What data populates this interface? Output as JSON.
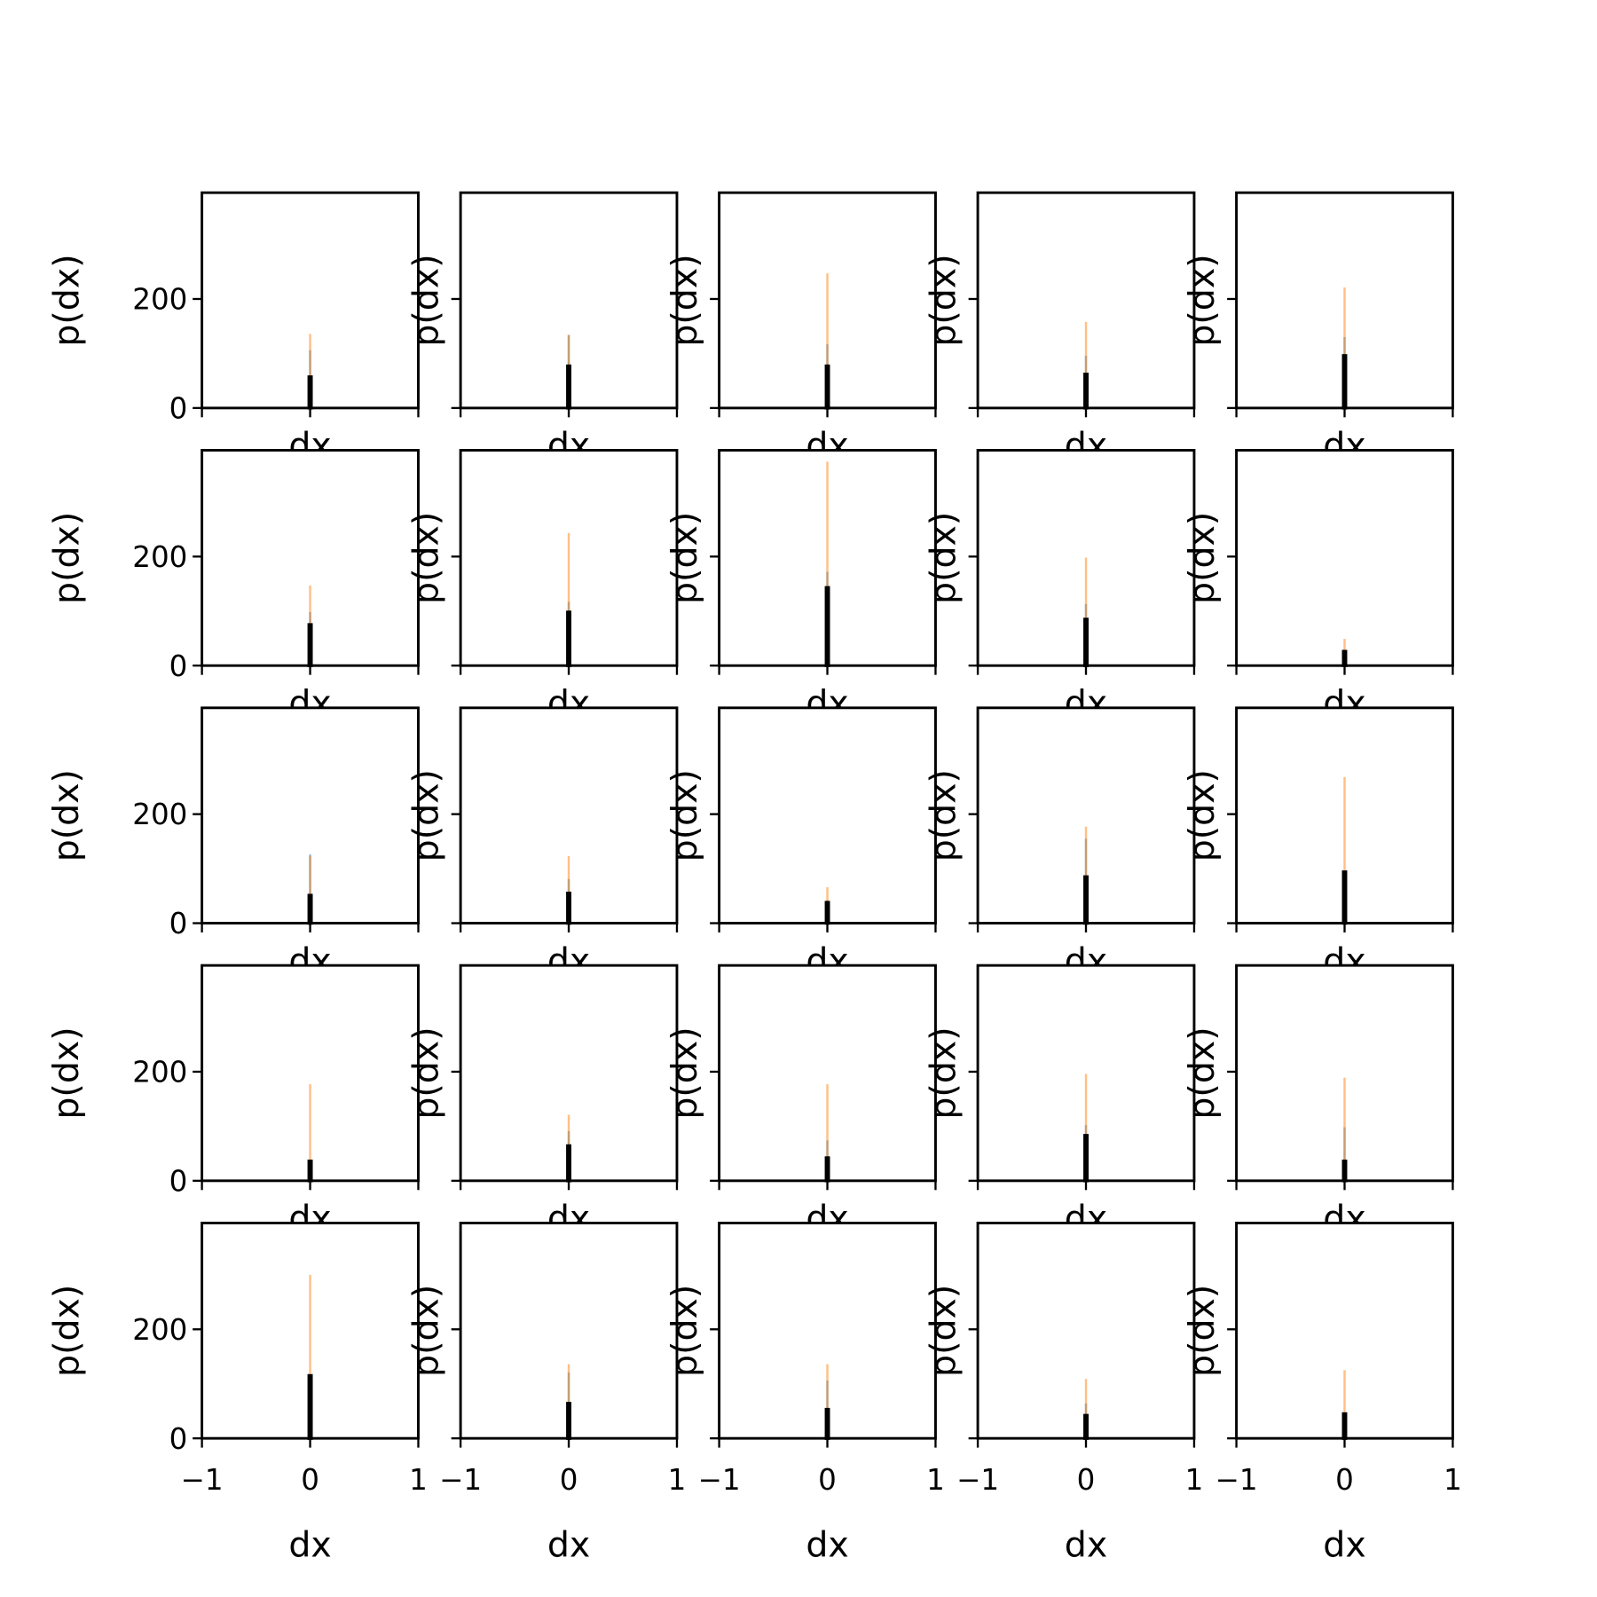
{
  "chart_data": [
    {
      "type": "histogram",
      "xlabel": "dx",
      "ylabel": "p(dx)",
      "bins": [
        -0.01,
        0.01
      ],
      "xlim": [
        -1,
        1
      ],
      "xticks": [
        {
          "value": -1,
          "label": "−1"
        },
        0,
        1
      ],
      "ylim": [
        0,
        395
      ],
      "yticks": [
        0,
        200
      ],
      "series": [
        {
          "color": "#1f77b4",
          "values": [
            106
          ]
        },
        {
          "color": "#ff7f0e",
          "values": [
            136
          ]
        },
        {
          "color": "#000000",
          "values": [
            57
          ]
        }
      ]
    },
    {
      "type": "histogram",
      "xlabel": "dx",
      "ylabel": "p(dx)",
      "bins": [
        -0.01,
        0.01
      ],
      "xlim": [
        -1,
        1
      ],
      "xticks": [
        {
          "value": -1,
          "label": "−1"
        },
        0,
        1
      ],
      "ylim": [
        0,
        395
      ],
      "yticks": [
        0,
        200
      ],
      "series": [
        {
          "color": "#1f77b4",
          "values": [
            134
          ]
        },
        {
          "color": "#ff7f0e",
          "values": [
            134
          ]
        },
        {
          "color": "#000000",
          "values": [
            77
          ]
        }
      ]
    },
    {
      "type": "histogram",
      "xlabel": "dx",
      "ylabel": "p(dx)",
      "bins": [
        -0.01,
        0.01
      ],
      "xlim": [
        -1,
        1
      ],
      "xticks": [
        {
          "value": -1,
          "label": "−1"
        },
        0,
        1
      ],
      "ylim": [
        0,
        395
      ],
      "yticks": [
        0,
        200
      ],
      "series": [
        {
          "color": "#1f77b4",
          "values": [
            117
          ]
        },
        {
          "color": "#ff7f0e",
          "values": [
            247
          ]
        },
        {
          "color": "#000000",
          "values": [
            77
          ]
        }
      ]
    },
    {
      "type": "histogram",
      "xlabel": "dx",
      "ylabel": "p(dx)",
      "bins": [
        -0.01,
        0.01
      ],
      "xlim": [
        -1,
        1
      ],
      "xticks": [
        {
          "value": -1,
          "label": "−1"
        },
        0,
        1
      ],
      "ylim": [
        0,
        395
      ],
      "yticks": [
        0,
        200
      ],
      "series": [
        {
          "color": "#1f77b4",
          "values": [
            96
          ]
        },
        {
          "color": "#ff7f0e",
          "values": [
            158
          ]
        },
        {
          "color": "#000000",
          "values": [
            62
          ]
        }
      ]
    },
    {
      "type": "histogram",
      "xlabel": "dx",
      "ylabel": "p(dx)",
      "bins": [
        -0.01,
        0.01
      ],
      "xlim": [
        -1,
        1
      ],
      "xticks": [
        {
          "value": -1,
          "label": "−1"
        },
        0,
        1
      ],
      "ylim": [
        0,
        395
      ],
      "yticks": [
        0,
        200
      ],
      "series": [
        {
          "color": "#1f77b4",
          "values": [
            130
          ]
        },
        {
          "color": "#ff7f0e",
          "values": [
            221
          ]
        },
        {
          "color": "#000000",
          "values": [
            96
          ]
        }
      ]
    },
    {
      "type": "histogram",
      "xlabel": "dx",
      "ylabel": "p(dx)",
      "bins": [
        -0.01,
        0.01
      ],
      "xlim": [
        -1,
        1
      ],
      "xticks": [
        {
          "value": -1,
          "label": "−1"
        },
        0,
        1
      ],
      "ylim": [
        0,
        395
      ],
      "yticks": [
        0,
        200
      ],
      "series": [
        {
          "color": "#1f77b4",
          "values": [
            98
          ]
        },
        {
          "color": "#ff7f0e",
          "values": [
            147
          ]
        },
        {
          "color": "#000000",
          "values": [
            75
          ]
        }
      ]
    },
    {
      "type": "histogram",
      "xlabel": "dx",
      "ylabel": "p(dx)",
      "bins": [
        -0.01,
        0.01
      ],
      "xlim": [
        -1,
        1
      ],
      "xticks": [
        {
          "value": -1,
          "label": "−1"
        },
        0,
        1
      ],
      "ylim": [
        0,
        395
      ],
      "yticks": [
        0,
        200
      ],
      "series": [
        {
          "color": "#1f77b4",
          "values": [
            117
          ]
        },
        {
          "color": "#ff7f0e",
          "values": [
            243
          ]
        },
        {
          "color": "#000000",
          "values": [
            98
          ]
        }
      ]
    },
    {
      "type": "histogram",
      "xlabel": "dx",
      "ylabel": "p(dx)",
      "bins": [
        -0.01,
        0.01
      ],
      "xlim": [
        -1,
        1
      ],
      "xticks": [
        {
          "value": -1,
          "label": "−1"
        },
        0,
        1
      ],
      "ylim": [
        0,
        395
      ],
      "yticks": [
        0,
        200
      ],
      "series": [
        {
          "color": "#1f77b4",
          "values": [
            172
          ]
        },
        {
          "color": "#ff7f0e",
          "values": [
            374
          ]
        },
        {
          "color": "#000000",
          "values": [
            143
          ]
        }
      ]
    },
    {
      "type": "histogram",
      "xlabel": "dx",
      "ylabel": "p(dx)",
      "bins": [
        -0.01,
        0.01
      ],
      "xlim": [
        -1,
        1
      ],
      "xticks": [
        {
          "value": -1,
          "label": "−1"
        },
        0,
        1
      ],
      "ylim": [
        0,
        395
      ],
      "yticks": [
        0,
        200
      ],
      "series": [
        {
          "color": "#1f77b4",
          "values": [
            113
          ]
        },
        {
          "color": "#ff7f0e",
          "values": [
            198
          ]
        },
        {
          "color": "#000000",
          "values": [
            85
          ]
        }
      ]
    },
    {
      "type": "histogram",
      "xlabel": "dx",
      "ylabel": "p(dx)",
      "bins": [
        -0.01,
        0.01
      ],
      "xlim": [
        -1,
        1
      ],
      "xticks": [
        {
          "value": -1,
          "label": "−1"
        },
        0,
        1
      ],
      "ylim": [
        0,
        395
      ],
      "yticks": [
        0,
        200
      ],
      "series": [
        {
          "color": "#1f77b4",
          "values": [
            26
          ]
        },
        {
          "color": "#ff7f0e",
          "values": [
            49
          ]
        },
        {
          "color": "#000000",
          "values": [
            26
          ]
        }
      ]
    },
    {
      "type": "histogram",
      "xlabel": "dx",
      "ylabel": "p(dx)",
      "bins": [
        -0.01,
        0.01
      ],
      "xlim": [
        -1,
        1
      ],
      "xticks": [
        {
          "value": -1,
          "label": "−1"
        },
        0,
        1
      ],
      "ylim": [
        0,
        395
      ],
      "yticks": [
        0,
        200
      ],
      "series": [
        {
          "color": "#1f77b4",
          "values": [
            126
          ]
        },
        {
          "color": "#ff7f0e",
          "values": [
            123
          ]
        },
        {
          "color": "#000000",
          "values": [
            51
          ]
        }
      ]
    },
    {
      "type": "histogram",
      "xlabel": "dx",
      "ylabel": "p(dx)",
      "bins": [
        -0.01,
        0.01
      ],
      "xlim": [
        -1,
        1
      ],
      "xticks": [
        {
          "value": -1,
          "label": "−1"
        },
        0,
        1
      ],
      "ylim": [
        0,
        395
      ],
      "yticks": [
        0,
        200
      ],
      "series": [
        {
          "color": "#1f77b4",
          "values": [
            81
          ]
        },
        {
          "color": "#ff7f0e",
          "values": [
            123
          ]
        },
        {
          "color": "#000000",
          "values": [
            55
          ]
        }
      ]
    },
    {
      "type": "histogram",
      "xlabel": "dx",
      "ylabel": "p(dx)",
      "bins": [
        -0.01,
        0.01
      ],
      "xlim": [
        -1,
        1
      ],
      "xticks": [
        {
          "value": -1,
          "label": "−1"
        },
        0,
        1
      ],
      "ylim": [
        0,
        395
      ],
      "yticks": [
        0,
        200
      ],
      "series": [
        {
          "color": "#1f77b4",
          "values": [
            42
          ]
        },
        {
          "color": "#ff7f0e",
          "values": [
            66
          ]
        },
        {
          "color": "#000000",
          "values": [
            38
          ]
        }
      ]
    },
    {
      "type": "histogram",
      "xlabel": "dx",
      "ylabel": "p(dx)",
      "bins": [
        -0.01,
        0.01
      ],
      "xlim": [
        -1,
        1
      ],
      "xticks": [
        {
          "value": -1,
          "label": "−1"
        },
        0,
        1
      ],
      "ylim": [
        0,
        395
      ],
      "yticks": [
        0,
        200
      ],
      "series": [
        {
          "color": "#1f77b4",
          "values": [
            155
          ]
        },
        {
          "color": "#ff7f0e",
          "values": [
            177
          ]
        },
        {
          "color": "#000000",
          "values": [
            85
          ]
        }
      ]
    },
    {
      "type": "histogram",
      "xlabel": "dx",
      "ylabel": "p(dx)",
      "bins": [
        -0.01,
        0.01
      ],
      "xlim": [
        -1,
        1
      ],
      "xticks": [
        {
          "value": -1,
          "label": "−1"
        },
        0,
        1
      ],
      "ylim": [
        0,
        395
      ],
      "yticks": [
        0,
        200
      ],
      "series": [
        {
          "color": "#1f77b4",
          "values": [
            66
          ]
        },
        {
          "color": "#ff7f0e",
          "values": [
            268
          ]
        },
        {
          "color": "#000000",
          "values": [
            94
          ]
        }
      ]
    },
    {
      "type": "histogram",
      "xlabel": "dx",
      "ylabel": "p(dx)",
      "bins": [
        -0.01,
        0.01
      ],
      "xlim": [
        -1,
        1
      ],
      "xticks": [
        {
          "value": -1,
          "label": "−1"
        },
        0,
        1
      ],
      "ylim": [
        0,
        395
      ],
      "yticks": [
        0,
        200
      ],
      "series": [
        {
          "color": "#1f77b4",
          "values": [
            15
          ]
        },
        {
          "color": "#ff7f0e",
          "values": [
            177
          ]
        },
        {
          "color": "#000000",
          "values": [
            36
          ]
        }
      ]
    },
    {
      "type": "histogram",
      "xlabel": "dx",
      "ylabel": "p(dx)",
      "bins": [
        -0.01,
        0.01
      ],
      "xlim": [
        -1,
        1
      ],
      "xticks": [
        {
          "value": -1,
          "label": "−1"
        },
        0,
        1
      ],
      "ylim": [
        0,
        395
      ],
      "yticks": [
        0,
        200
      ],
      "series": [
        {
          "color": "#1f77b4",
          "values": [
            91
          ]
        },
        {
          "color": "#ff7f0e",
          "values": [
            121
          ]
        },
        {
          "color": "#000000",
          "values": [
            64
          ]
        }
      ]
    },
    {
      "type": "histogram",
      "xlabel": "dx",
      "ylabel": "p(dx)",
      "bins": [
        -0.01,
        0.01
      ],
      "xlim": [
        -1,
        1
      ],
      "xticks": [
        {
          "value": -1,
          "label": "−1"
        },
        0,
        1
      ],
      "ylim": [
        0,
        395
      ],
      "yticks": [
        0,
        200
      ],
      "series": [
        {
          "color": "#1f77b4",
          "values": [
            74
          ]
        },
        {
          "color": "#ff7f0e",
          "values": [
            177
          ]
        },
        {
          "color": "#000000",
          "values": [
            42
          ]
        }
      ]
    },
    {
      "type": "histogram",
      "xlabel": "dx",
      "ylabel": "p(dx)",
      "bins": [
        -0.01,
        0.01
      ],
      "xlim": [
        -1,
        1
      ],
      "xticks": [
        {
          "value": -1,
          "label": "−1"
        },
        0,
        1
      ],
      "ylim": [
        0,
        395
      ],
      "yticks": [
        0,
        200
      ],
      "series": [
        {
          "color": "#1f77b4",
          "values": [
            102
          ]
        },
        {
          "color": "#ff7f0e",
          "values": [
            196
          ]
        },
        {
          "color": "#000000",
          "values": [
            83
          ]
        }
      ]
    },
    {
      "type": "histogram",
      "xlabel": "dx",
      "ylabel": "p(dx)",
      "bins": [
        -0.01,
        0.01
      ],
      "xlim": [
        -1,
        1
      ],
      "xticks": [
        {
          "value": -1,
          "label": "−1"
        },
        0,
        1
      ],
      "ylim": [
        0,
        395
      ],
      "yticks": [
        0,
        200
      ],
      "series": [
        {
          "color": "#1f77b4",
          "values": [
            98
          ]
        },
        {
          "color": "#ff7f0e",
          "values": [
            189
          ]
        },
        {
          "color": "#000000",
          "values": [
            36
          ]
        }
      ]
    },
    {
      "type": "histogram",
      "xlabel": "dx",
      "ylabel": "p(dx)",
      "bins": [
        -0.01,
        0.01
      ],
      "xlim": [
        -1,
        1
      ],
      "xticks": [
        {
          "value": -1,
          "label": "−1"
        },
        0,
        1
      ],
      "ylim": [
        0,
        395
      ],
      "yticks": [
        0,
        200
      ],
      "series": [
        {
          "color": "#1f77b4",
          "values": [
            102
          ]
        },
        {
          "color": "#ff7f0e",
          "values": [
            300
          ]
        },
        {
          "color": "#000000",
          "values": [
            115
          ]
        }
      ]
    },
    {
      "type": "histogram",
      "xlabel": "dx",
      "ylabel": "p(dx)",
      "bins": [
        -0.01,
        0.01
      ],
      "xlim": [
        -1,
        1
      ],
      "xticks": [
        {
          "value": -1,
          "label": "−1"
        },
        0,
        1
      ],
      "ylim": [
        0,
        395
      ],
      "yticks": [
        0,
        200
      ],
      "series": [
        {
          "color": "#1f77b4",
          "values": [
            121
          ]
        },
        {
          "color": "#ff7f0e",
          "values": [
            136
          ]
        },
        {
          "color": "#000000",
          "values": [
            64
          ]
        }
      ]
    },
    {
      "type": "histogram",
      "xlabel": "dx",
      "ylabel": "p(dx)",
      "bins": [
        -0.01,
        0.01
      ],
      "xlim": [
        -1,
        1
      ],
      "xticks": [
        {
          "value": -1,
          "label": "−1"
        },
        0,
        1
      ],
      "ylim": [
        0,
        395
      ],
      "yticks": [
        0,
        200
      ],
      "series": [
        {
          "color": "#1f77b4",
          "values": [
            106
          ]
        },
        {
          "color": "#ff7f0e",
          "values": [
            136
          ]
        },
        {
          "color": "#000000",
          "values": [
            53
          ]
        }
      ]
    },
    {
      "type": "histogram",
      "xlabel": "dx",
      "ylabel": "p(dx)",
      "bins": [
        -0.01,
        0.01
      ],
      "xlim": [
        -1,
        1
      ],
      "xticks": [
        {
          "value": -1,
          "label": "−1"
        },
        0,
        1
      ],
      "ylim": [
        0,
        395
      ],
      "yticks": [
        0,
        200
      ],
      "series": [
        {
          "color": "#1f77b4",
          "values": [
            64
          ]
        },
        {
          "color": "#ff7f0e",
          "values": [
            109
          ]
        },
        {
          "color": "#000000",
          "values": [
            42
          ]
        }
      ]
    },
    {
      "type": "histogram",
      "xlabel": "dx",
      "ylabel": "p(dx)",
      "bins": [
        -0.01,
        0.01
      ],
      "xlim": [
        -1,
        1
      ],
      "xticks": [
        {
          "value": -1,
          "label": "−1"
        },
        0,
        1
      ],
      "ylim": [
        0,
        395
      ],
      "yticks": [
        0,
        200
      ],
      "series": [
        {
          "color": "#1f77b4",
          "values": [
            43
          ]
        },
        {
          "color": "#ff7f0e",
          "values": [
            125
          ]
        },
        {
          "color": "#000000",
          "values": [
            45
          ]
        }
      ]
    }
  ]
}
